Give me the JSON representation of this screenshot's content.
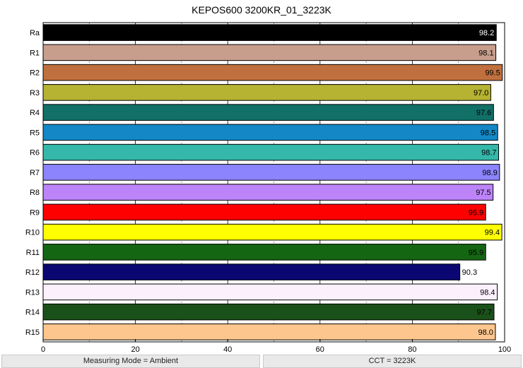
{
  "chart_data": {
    "type": "bar",
    "orientation": "horizontal",
    "title": "KEPOS600 3200KR_01_3223K",
    "categories": [
      "Ra",
      "R1",
      "R2",
      "R3",
      "R4",
      "R5",
      "R6",
      "R7",
      "R8",
      "R9",
      "R10",
      "R11",
      "R12",
      "R13",
      "R14",
      "R15"
    ],
    "values": [
      98.2,
      98.1,
      99.5,
      97.0,
      97.6,
      98.5,
      98.7,
      98.9,
      97.5,
      95.9,
      99.4,
      95.9,
      90.3,
      98.4,
      97.7,
      98.0
    ],
    "value_labels": [
      "98.2",
      "98.1",
      "99.5",
      "97.0",
      "97.6",
      "98.5",
      "98.7",
      "98.9",
      "97.5",
      "95.9",
      "99.4",
      "95.9",
      "90.3",
      "98.4",
      "97.7",
      "98.0"
    ],
    "colors": [
      "#000000",
      "#c79e8c",
      "#c0703f",
      "#b6b232",
      "#117068",
      "#1488c6",
      "#35b8aa",
      "#8c84fc",
      "#bd84f9",
      "#ff0000",
      "#ffff00",
      "#146612",
      "#0a0772",
      "#fdf0fd",
      "#1a5019",
      "#fdc68e"
    ],
    "label_colors": [
      "#ffffff",
      "#000000",
      "#000000",
      "#000000",
      "#000000",
      "#000000",
      "#000000",
      "#000000",
      "#000000",
      "#000000",
      "#000000",
      "#000000",
      "#000000",
      "#000000",
      "#000000",
      "#000000"
    ],
    "xlim": [
      0,
      100
    ],
    "xticks": [
      "0",
      "20",
      "40",
      "60",
      "80",
      "100"
    ],
    "grid": "vertical"
  },
  "footer": {
    "measuring_mode": "Measuring Mode = Ambient",
    "cct": "CCT = 3223K"
  }
}
